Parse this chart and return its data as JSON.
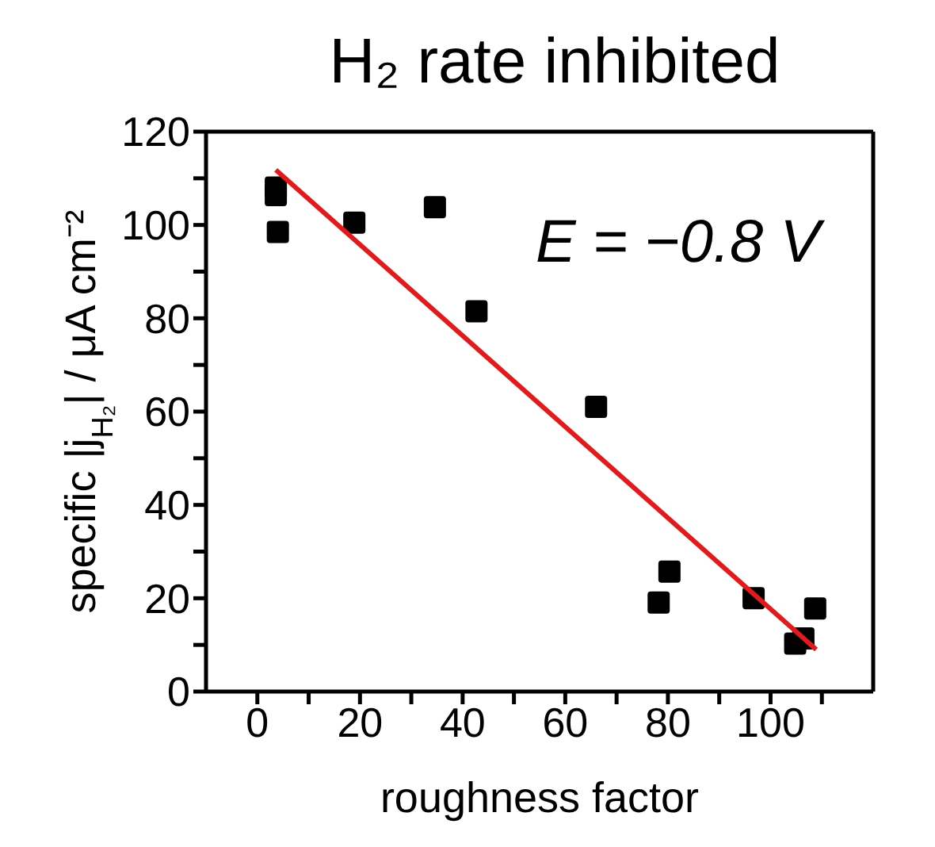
{
  "chart_data": {
    "type": "scatter",
    "title": "H₂ rate inhibited",
    "xlabel": "roughness factor",
    "ylabel": "specific |j$_{H₂}$| / μA cm⁻²",
    "annotations": [
      "E = −0.8 V"
    ],
    "series": [
      {
        "color": "#000000",
        "marker": "square",
        "x": [
          3.6,
          3.6,
          4.0,
          18.9,
          34.6,
          42.7,
          66.0,
          78.2,
          80.3,
          96.7,
          104.8,
          106.4,
          108.7
        ],
        "values": [
          108,
          106.4,
          98.5,
          100.5,
          103.8,
          81.5,
          61,
          19.1,
          25.7,
          20,
          10.3,
          11.4,
          17.8
        ]
      },
      {
        "type": "line",
        "color": "#e31a1c",
        "marker": "none",
        "x": [
          3.6,
          108.9
        ],
        "values": [
          111.8,
          9.0
        ]
      }
    ],
    "xlim": [
      -10,
      120
    ],
    "ylim": [
      0,
      120
    ],
    "xticks": [
      0,
      {
        "value": 10,
        "label": null
      },
      20,
      {
        "value": 30,
        "label": null
      },
      40,
      {
        "value": 50,
        "label": null
      },
      60,
      {
        "value": 70,
        "label": null
      },
      80,
      {
        "value": 90,
        "label": null
      },
      100,
      {
        "value": 110,
        "label": null
      }
    ],
    "yticks": [
      0,
      {
        "value": 10,
        "label": null
      },
      20,
      {
        "value": 30,
        "label": null
      },
      40,
      {
        "value": 50,
        "label": null
      },
      60,
      {
        "value": 70,
        "label": null
      },
      80,
      {
        "value": 90,
        "label": null
      },
      100,
      {
        "value": 110,
        "label": null
      },
      120
    ],
    "legend": false
  }
}
